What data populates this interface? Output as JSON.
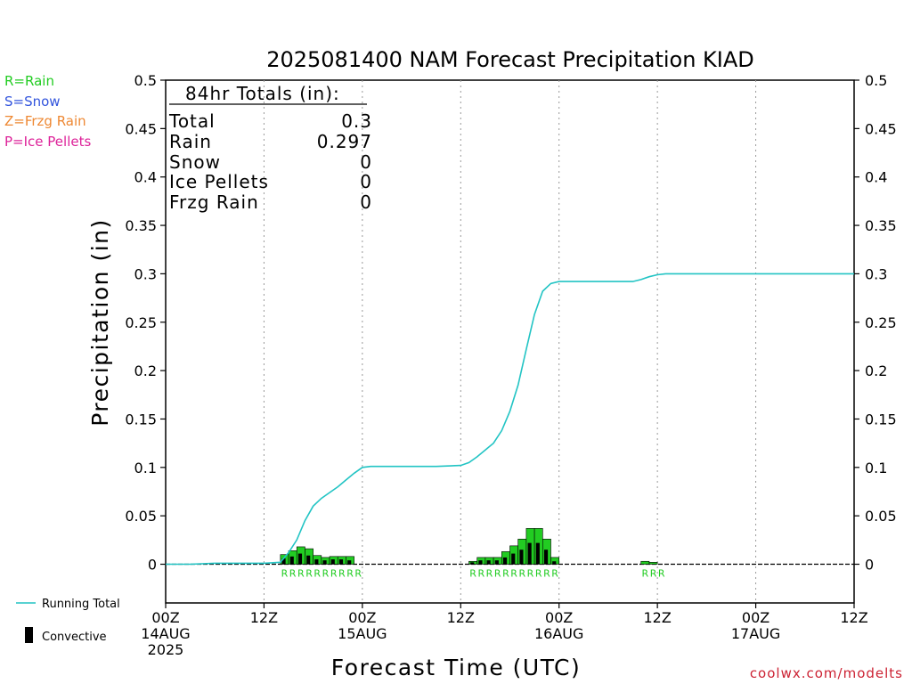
{
  "chart_data": {
    "type": "bar",
    "title": "2025081400 NAM Forecast Precipitation KIAD",
    "xlabel": "Forecast Time (UTC)",
    "ylabel": "Precipitation (in)",
    "ylim": [
      -0.04,
      0.5
    ],
    "yticks": [
      0,
      0.05,
      0.1,
      0.15,
      0.2,
      0.25,
      0.3,
      0.35,
      0.4,
      0.45,
      0.5
    ],
    "ytick_labels": [
      "0",
      "0.05",
      "0.1",
      "0.15",
      "0.2",
      "0.25",
      "0.3",
      "0.35",
      "0.4",
      "0.45",
      "0.5"
    ],
    "xlim": [
      0,
      84
    ],
    "xticks": [
      {
        "hour": 0,
        "lines": [
          "00Z",
          "14AUG",
          "2025"
        ]
      },
      {
        "hour": 12,
        "lines": [
          "12Z"
        ]
      },
      {
        "hour": 24,
        "lines": [
          "00Z",
          "15AUG"
        ]
      },
      {
        "hour": 36,
        "lines": [
          "12Z"
        ]
      },
      {
        "hour": 48,
        "lines": [
          "00Z",
          "16AUG"
        ]
      },
      {
        "hour": 60,
        "lines": [
          "12Z"
        ]
      },
      {
        "hour": 72,
        "lines": [
          "00Z",
          "17AUG"
        ]
      },
      {
        "hour": 84,
        "lines": [
          "12Z"
        ]
      }
    ],
    "grid": "vertical dotted",
    "series": [
      {
        "name": "Running Total",
        "color": "#22c4c4",
        "x": [
          0,
          3,
          6,
          9,
          12,
          14,
          15,
          16,
          17,
          18,
          19,
          20,
          21,
          22,
          23,
          24,
          25,
          27,
          30,
          33,
          36,
          37,
          38,
          39,
          40,
          41,
          42,
          43,
          44,
          45,
          46,
          47,
          48,
          49,
          50,
          53,
          56,
          57,
          58,
          59,
          60,
          61,
          62,
          65,
          70,
          75,
          80,
          84
        ],
        "values": [
          0,
          0,
          0.001,
          0.001,
          0.001,
          0.002,
          0.012,
          0.025,
          0.045,
          0.06,
          0.068,
          0.074,
          0.08,
          0.087,
          0.094,
          0.1,
          0.101,
          0.101,
          0.101,
          0.101,
          0.102,
          0.105,
          0.111,
          0.118,
          0.125,
          0.138,
          0.158,
          0.185,
          0.222,
          0.258,
          0.282,
          0.29,
          0.292,
          0.292,
          0.292,
          0.292,
          0.292,
          0.292,
          0.294,
          0.297,
          0.299,
          0.3,
          0.3,
          0.3,
          0.3,
          0.3,
          0.3,
          0.3
        ]
      },
      {
        "name": "Convective",
        "color": "#000000",
        "hours": [
          15,
          16,
          17,
          18,
          19,
          20,
          21,
          22,
          23,
          38,
          39,
          40,
          41,
          42,
          43,
          44,
          45,
          46,
          47,
          48,
          59,
          60
        ],
        "total": [
          0.01,
          0.014,
          0.018,
          0.016,
          0.009,
          0.007,
          0.008,
          0.008,
          0.008,
          0.003,
          0.007,
          0.007,
          0.007,
          0.013,
          0.019,
          0.026,
          0.037,
          0.037,
          0.026,
          0.007,
          0.003,
          0.002
        ],
        "convective": [
          0.006,
          0.008,
          0.011,
          0.009,
          0.005,
          0.004,
          0.005,
          0.005,
          0.004,
          0.002,
          0.004,
          0.004,
          0.004,
          0.007,
          0.011,
          0.015,
          0.022,
          0.022,
          0.015,
          0.003,
          0.0,
          0.0
        ]
      }
    ],
    "ptype_labels": [
      {
        "hour": 15,
        "text": "R"
      },
      {
        "hour": 16,
        "text": "R"
      },
      {
        "hour": 17,
        "text": "R"
      },
      {
        "hour": 18,
        "text": "R"
      },
      {
        "hour": 19,
        "text": "R"
      },
      {
        "hour": 20,
        "text": "R"
      },
      {
        "hour": 21,
        "text": "R"
      },
      {
        "hour": 22,
        "text": "R"
      },
      {
        "hour": 23,
        "text": "R"
      },
      {
        "hour": 24,
        "text": "R"
      },
      {
        "hour": 38,
        "text": "R"
      },
      {
        "hour": 39,
        "text": "R"
      },
      {
        "hour": 40,
        "text": "R"
      },
      {
        "hour": 41,
        "text": "R"
      },
      {
        "hour": 42,
        "text": "R"
      },
      {
        "hour": 43,
        "text": "R"
      },
      {
        "hour": 44,
        "text": "R"
      },
      {
        "hour": 45,
        "text": "R"
      },
      {
        "hour": 46,
        "text": "R"
      },
      {
        "hour": 47,
        "text": "R"
      },
      {
        "hour": 48,
        "text": "R"
      },
      {
        "hour": 59,
        "text": "R"
      },
      {
        "hour": 60,
        "text": "R"
      },
      {
        "hour": 61,
        "text": "R"
      }
    ]
  },
  "key": [
    {
      "text": "R=Rain",
      "color": "#22cc22"
    },
    {
      "text": "S=Snow",
      "color": "#3355dd"
    },
    {
      "text": "Z=Frzg Rain",
      "color": "#ee8833"
    },
    {
      "text": "P=Ice Pellets",
      "color": "#dd2299"
    }
  ],
  "totals": {
    "header": "84hr Totals (in):",
    "rows": [
      {
        "label": "Total",
        "value": "0.3"
      },
      {
        "label": "Rain",
        "value": "0.297"
      },
      {
        "label": "Snow",
        "value": "0"
      },
      {
        "label": "Ice Pellets",
        "value": "0"
      },
      {
        "label": "Frzg Rain",
        "value": "0"
      }
    ]
  },
  "legend": {
    "running_total": "Running Total",
    "convective": "Convective"
  },
  "colors": {
    "rain": "#22cc22",
    "convective": "#000000",
    "running_total": "#22c4c4"
  },
  "credit": "coolwx.com/modelts"
}
